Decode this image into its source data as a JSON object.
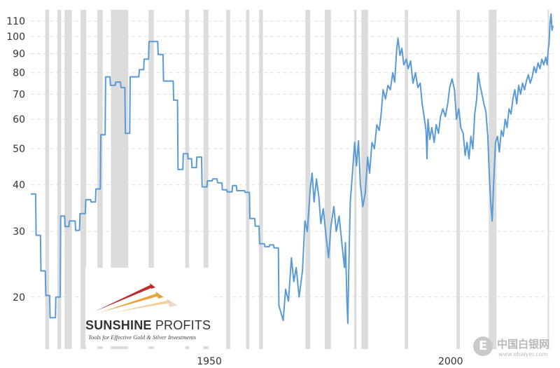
{
  "chart_data": {
    "type": "line",
    "y_scale": "log",
    "ylim": [
      14.5,
      118
    ],
    "xlim": [
      1913,
      2021.5
    ],
    "y_ticks": [
      20,
      30,
      40,
      50,
      60,
      70,
      80,
      90,
      100,
      110
    ],
    "y_tick_labels": [
      "20",
      "30",
      "40",
      "50",
      "60",
      "70",
      "80",
      "90",
      "100",
      "110"
    ],
    "x_ticks": [
      1950,
      2000
    ],
    "x_tick_labels": [
      "1950",
      "2000"
    ],
    "grid": "horizontal dashed",
    "line_color": "#5b9bd5",
    "shade_color": "#dcdcdc",
    "recessions": [
      [
        1916.0,
        1916.8
      ],
      [
        1918.5,
        1919.3
      ],
      [
        1920.0,
        1921.5
      ],
      [
        1923.3,
        1924.5
      ],
      [
        1926.8,
        1927.9
      ],
      [
        1929.6,
        1933.2
      ],
      [
        1937.4,
        1938.5
      ],
      [
        1945.0,
        1945.8
      ],
      [
        1948.8,
        1949.8
      ],
      [
        1953.5,
        1954.3
      ],
      [
        1957.6,
        1958.3
      ],
      [
        1960.3,
        1961.1
      ],
      [
        1969.9,
        1970.9
      ],
      [
        1973.9,
        1975.2
      ],
      [
        1980.0,
        1980.5
      ],
      [
        1981.5,
        1982.9
      ],
      [
        1990.5,
        1991.2
      ],
      [
        2001.2,
        2001.9
      ],
      [
        2007.9,
        2009.5
      ],
      [
        2020.1,
        2020.4
      ]
    ],
    "series": [
      {
        "points": [
          [
            1913.0,
            37.8
          ],
          [
            1914.0,
            37.8
          ],
          [
            1914.1,
            29.3
          ],
          [
            1915.0,
            29.3
          ],
          [
            1915.1,
            23.5
          ],
          [
            1916.0,
            23.5
          ],
          [
            1916.1,
            20.2
          ],
          [
            1916.9,
            20.2
          ],
          [
            1917.0,
            17.6
          ],
          [
            1918.1,
            17.6
          ],
          [
            1918.2,
            20.0
          ],
          [
            1919.1,
            20.0
          ],
          [
            1919.2,
            33.0
          ],
          [
            1920.0,
            33.0
          ],
          [
            1920.1,
            30.9
          ],
          [
            1920.9,
            30.9
          ],
          [
            1921.0,
            32.0
          ],
          [
            1922.2,
            32.0
          ],
          [
            1922.3,
            30.2
          ],
          [
            1923.1,
            30.2
          ],
          [
            1923.2,
            33.5
          ],
          [
            1924.3,
            33.5
          ],
          [
            1924.4,
            36.5
          ],
          [
            1925.4,
            36.5
          ],
          [
            1925.5,
            36.0
          ],
          [
            1926.4,
            36.0
          ],
          [
            1926.5,
            39.0
          ],
          [
            1927.4,
            39.0
          ],
          [
            1927.5,
            54.5
          ],
          [
            1928.4,
            54.5
          ],
          [
            1928.5,
            78.0
          ],
          [
            1929.4,
            78.0
          ],
          [
            1929.5,
            74.0
          ],
          [
            1930.5,
            74.0
          ],
          [
            1930.6,
            75.5
          ],
          [
            1931.6,
            75.5
          ],
          [
            1931.7,
            73.0
          ],
          [
            1932.5,
            73.0
          ],
          [
            1932.6,
            55.0
          ],
          [
            1933.5,
            55.0
          ],
          [
            1933.6,
            78.0
          ],
          [
            1935.4,
            78.0
          ],
          [
            1935.5,
            81.5
          ],
          [
            1936.4,
            81.5
          ],
          [
            1936.5,
            87.0
          ],
          [
            1937.4,
            87.0
          ],
          [
            1937.5,
            97.0
          ],
          [
            1939.3,
            97.0
          ],
          [
            1939.4,
            89.5
          ],
          [
            1940.4,
            89.5
          ],
          [
            1940.5,
            76.0
          ],
          [
            1942.5,
            76.0
          ],
          [
            1942.6,
            67.5
          ],
          [
            1943.4,
            67.5
          ],
          [
            1943.5,
            44.0
          ],
          [
            1944.5,
            44.0
          ],
          [
            1944.6,
            48.5
          ],
          [
            1945.5,
            48.5
          ],
          [
            1945.6,
            47.0
          ],
          [
            1946.3,
            47.0
          ],
          [
            1946.4,
            44.5
          ],
          [
            1947.3,
            44.5
          ],
          [
            1947.4,
            47.5
          ],
          [
            1948.4,
            47.5
          ],
          [
            1948.5,
            39.5
          ],
          [
            1949.5,
            39.5
          ],
          [
            1949.6,
            41.0
          ],
          [
            1950.6,
            41.0
          ],
          [
            1950.7,
            41.5
          ],
          [
            1951.6,
            41.5
          ],
          [
            1951.7,
            40.5
          ],
          [
            1952.6,
            40.5
          ],
          [
            1952.7,
            38.8
          ],
          [
            1953.6,
            38.8
          ],
          [
            1953.7,
            38.3
          ],
          [
            1954.7,
            38.3
          ],
          [
            1954.8,
            39.8
          ],
          [
            1955.6,
            39.8
          ],
          [
            1955.7,
            38.6
          ],
          [
            1957.3,
            38.6
          ],
          [
            1957.4,
            38.2
          ],
          [
            1958.3,
            38.2
          ],
          [
            1958.4,
            32.5
          ],
          [
            1959.4,
            32.5
          ],
          [
            1959.5,
            31.0
          ],
          [
            1960.3,
            31.0
          ],
          [
            1960.4,
            27.8
          ],
          [
            1961.4,
            27.8
          ],
          [
            1961.5,
            27.3
          ],
          [
            1962.4,
            27.3
          ],
          [
            1962.5,
            27.6
          ],
          [
            1963.3,
            27.6
          ],
          [
            1963.4,
            27.1
          ],
          [
            1964.3,
            27.1
          ],
          [
            1964.4,
            19.0
          ],
          [
            1965.3,
            17.3
          ],
          [
            1965.8,
            21.0
          ],
          [
            1966.4,
            19.5
          ],
          [
            1967.0,
            25.5
          ],
          [
            1967.5,
            22.0
          ],
          [
            1968.0,
            24.0
          ],
          [
            1968.6,
            20.0
          ],
          [
            1969.3,
            23.5
          ],
          [
            1969.8,
            32.0
          ],
          [
            1970.3,
            30.0
          ],
          [
            1970.9,
            39.0
          ],
          [
            1971.3,
            43.0
          ],
          [
            1971.7,
            36.0
          ],
          [
            1972.2,
            41.5
          ],
          [
            1972.7,
            37.0
          ],
          [
            1973.1,
            31.5
          ],
          [
            1973.6,
            34.5
          ],
          [
            1974.2,
            29.0
          ],
          [
            1974.7,
            25.5
          ],
          [
            1975.2,
            31.0
          ],
          [
            1975.8,
            35.0
          ],
          [
            1976.3,
            30.0
          ],
          [
            1976.9,
            33.0
          ],
          [
            1977.5,
            27.5
          ],
          [
            1978.0,
            24.0
          ],
          [
            1978.2,
            28.0
          ],
          [
            1978.5,
            19.5
          ],
          [
            1978.7,
            17.0
          ],
          [
            1978.9,
            24.0
          ],
          [
            1979.2,
            36.0
          ],
          [
            1979.6,
            42.0
          ],
          [
            1980.1,
            52.0
          ],
          [
            1980.5,
            45.0
          ],
          [
            1980.9,
            52.5
          ],
          [
            1981.3,
            40.0
          ],
          [
            1981.8,
            35.0
          ],
          [
            1982.3,
            38.0
          ],
          [
            1982.8,
            47.5
          ],
          [
            1983.2,
            43.0
          ],
          [
            1983.7,
            52.0
          ],
          [
            1984.2,
            50.0
          ],
          [
            1984.7,
            58.0
          ],
          [
            1985.2,
            56.0
          ],
          [
            1985.6,
            62.0
          ],
          [
            1986.0,
            72.0
          ],
          [
            1986.5,
            68.0
          ],
          [
            1987.0,
            74.0
          ],
          [
            1987.5,
            72.0
          ],
          [
            1988.0,
            80.0
          ],
          [
            1988.4,
            75.5
          ],
          [
            1988.8,
            92.0
          ],
          [
            1989.1,
            99.0
          ],
          [
            1989.5,
            89.0
          ],
          [
            1989.9,
            93.0
          ],
          [
            1990.3,
            84.0
          ],
          [
            1990.8,
            87.0
          ],
          [
            1991.2,
            82.0
          ],
          [
            1991.7,
            86.0
          ],
          [
            1992.2,
            75.0
          ],
          [
            1992.7,
            80.0
          ],
          [
            1993.2,
            73.0
          ],
          [
            1993.7,
            75.0
          ],
          [
            1994.1,
            66.0
          ],
          [
            1994.5,
            61.0
          ],
          [
            1994.9,
            56.0
          ],
          [
            1995.1,
            47.0
          ],
          [
            1995.3,
            60.0
          ],
          [
            1995.7,
            53.0
          ],
          [
            1996.1,
            57.0
          ],
          [
            1996.6,
            52.0
          ],
          [
            1997.0,
            58.0
          ],
          [
            1997.5,
            55.0
          ],
          [
            1997.9,
            61.0
          ],
          [
            1998.4,
            64.0
          ],
          [
            1998.9,
            61.0
          ],
          [
            1999.4,
            66.0
          ],
          [
            1999.8,
            73.0
          ],
          [
            2000.3,
            77.0
          ],
          [
            2000.8,
            72.0
          ],
          [
            2001.2,
            60.0
          ],
          [
            2001.7,
            64.0
          ],
          [
            2002.1,
            57.0
          ],
          [
            2002.6,
            55.0
          ],
          [
            2003.0,
            48.0
          ],
          [
            2003.4,
            52.0
          ],
          [
            2003.8,
            47.0
          ],
          [
            2004.2,
            54.0
          ],
          [
            2004.6,
            50.0
          ],
          [
            2005.0,
            62.0
          ],
          [
            2005.4,
            68.0
          ],
          [
            2005.7,
            80.0
          ],
          [
            2006.1,
            74.0
          ],
          [
            2006.5,
            70.0
          ],
          [
            2006.9,
            66.0
          ],
          [
            2007.3,
            63.0
          ],
          [
            2007.7,
            54.0
          ],
          [
            2008.0,
            43.0
          ],
          [
            2008.3,
            36.0
          ],
          [
            2008.6,
            32.0
          ],
          [
            2008.9,
            40.0
          ],
          [
            2009.3,
            52.0
          ],
          [
            2009.7,
            54.0
          ],
          [
            2010.1,
            49.0
          ],
          [
            2010.5,
            56.0
          ],
          [
            2010.9,
            54.0
          ],
          [
            2011.3,
            60.0
          ],
          [
            2011.7,
            57.0
          ],
          [
            2012.1,
            64.0
          ],
          [
            2012.5,
            62.0
          ],
          [
            2012.9,
            68.0
          ],
          [
            2013.3,
            72.0
          ],
          [
            2013.7,
            66.0
          ],
          [
            2014.1,
            74.0
          ],
          [
            2014.5,
            70.0
          ],
          [
            2014.9,
            75.0
          ],
          [
            2015.3,
            72.0
          ],
          [
            2015.7,
            76.0
          ],
          [
            2016.1,
            79.0
          ],
          [
            2016.5,
            75.0
          ],
          [
            2016.9,
            78.0
          ],
          [
            2017.3,
            83.0
          ],
          [
            2017.7,
            80.0
          ],
          [
            2018.1,
            85.0
          ],
          [
            2018.5,
            82.0
          ],
          [
            2018.9,
            87.0
          ],
          [
            2019.3,
            84.0
          ],
          [
            2019.7,
            88.0
          ],
          [
            2020.0,
            84.0
          ],
          [
            2020.2,
            92.0
          ],
          [
            2020.4,
            96.0
          ],
          [
            2020.6,
            109.0
          ],
          [
            2020.8,
            115.0
          ],
          [
            2021.0,
            104.0
          ],
          [
            2021.2,
            107.0
          ]
        ]
      }
    ]
  },
  "logo": {
    "name_bold": "SUNSHINE",
    "name_light": "PROFITS",
    "tagline": "Tools for Effective Gold & Silver Investments"
  },
  "watermark": {
    "symbol": "E",
    "text": "中国白银网",
    "url": "www.ebaiyin.com"
  }
}
